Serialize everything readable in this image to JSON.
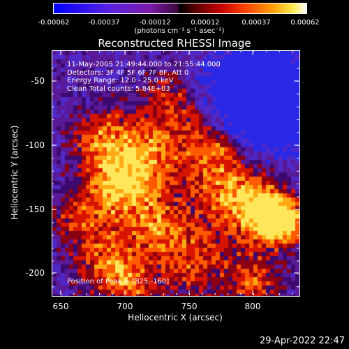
{
  "colorbar": {
    "ticks": [
      "-0.00062",
      "-0.00037",
      "-0.00012",
      "0.00012",
      "0.00037",
      "0.00062"
    ],
    "units": "(photons cm⁻² s⁻¹ asec⁻²)",
    "colors": [
      "#0000ff",
      "#7b1aa8",
      "#000000",
      "#c40000",
      "#ff9900",
      "#ffffff"
    ]
  },
  "chart_data": {
    "type": "heatmap",
    "title": "Reconstructed RHESSI Image",
    "xlabel": "Heliocentric X (arcsec)",
    "ylabel": "Heliocentric Y (arcsec)",
    "xlim": [
      643,
      835
    ],
    "ylim": [
      -217,
      -28
    ],
    "x_ticks": [
      "650",
      "700",
      "750",
      "800"
    ],
    "y_ticks": [
      "-50",
      "-100",
      "-150",
      "-200"
    ],
    "annotations": {
      "time_range": "11-May-2005 21:49:44.000 to 21:55:44.000",
      "detectors": "Detectors: 3F 4F 5F 6F 7F 8F, Att 0",
      "energy_range": "Energy Range: 12.0 - 25.0 keV",
      "clean": "Clean     Total counts: 5.84E+03",
      "peak": "Position of Peak = [825,-160]"
    }
  },
  "timestamp": "29-Apr-2022 22:47"
}
